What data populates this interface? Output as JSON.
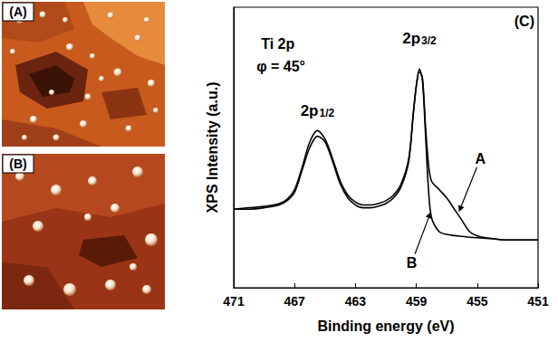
{
  "panels": [
    {
      "label": "(A)"
    },
    {
      "label": "(B)"
    }
  ],
  "chart_data": {
    "type": "line",
    "x_label": "Binding energy (eV)",
    "y_label": "XPS Intensity (a.u.)",
    "x": [
      451,
      452,
      453,
      454,
      455,
      455.5,
      456,
      456.5,
      457,
      457.5,
      458,
      458.2,
      458.4,
      458.6,
      458.8,
      459,
      459.2,
      459.5,
      460,
      460.5,
      461,
      461.5,
      462,
      462.5,
      463,
      463.5,
      464,
      464.5,
      465,
      465.5,
      466,
      466.5,
      467,
      467.5,
      468,
      469,
      470,
      471
    ],
    "series": [
      {
        "name": "A",
        "color": "#000000",
        "values": [
          17,
          17,
          17,
          17.5,
          18.5,
          20,
          24,
          28,
          32,
          35,
          38,
          44,
          58,
          75,
          77,
          72,
          62,
          46,
          37,
          33,
          31,
          30,
          29.5,
          29.5,
          30.5,
          33,
          38,
          46,
          53,
          56,
          52,
          43,
          35,
          31.5,
          30,
          29,
          28.5,
          28
        ]
      },
      {
        "name": "B",
        "color": "#000000",
        "values": [
          17,
          17,
          17,
          17.5,
          17.8,
          18,
          18.3,
          18.6,
          19,
          20,
          25,
          35,
          55,
          74,
          78,
          72,
          62,
          45,
          36,
          32,
          30,
          29,
          28.5,
          28.5,
          29.5,
          32,
          37,
          45,
          52,
          54,
          50,
          42,
          34,
          31,
          29.5,
          28.5,
          28,
          28
        ]
      }
    ],
    "xlim": [
      471,
      451
    ],
    "xticks": [
      471,
      467,
      463,
      459,
      455,
      451
    ],
    "ylim": [
      0,
      100
    ],
    "tick_labels": "x",
    "grid": false,
    "annotations": [
      {
        "text": "(C)",
        "x": 451.9,
        "y": 95
      },
      {
        "text": "Ti 2p",
        "x": 468.1,
        "y": 87
      },
      {
        "text": "φ = 45°",
        "x": 467.9,
        "y": 79
      },
      {
        "text": "2p1/2",
        "x": 465.5,
        "y": 63
      },
      {
        "text": "2p3/2",
        "x": 458.8,
        "y": 89
      },
      {
        "text": "A",
        "x": 454.8,
        "y": 46,
        "arrow_to": [
          456.2,
          27
        ]
      },
      {
        "text": "B",
        "x": 459.3,
        "y": 9,
        "arrow_to": [
          458.05,
          27
        ]
      }
    ]
  }
}
